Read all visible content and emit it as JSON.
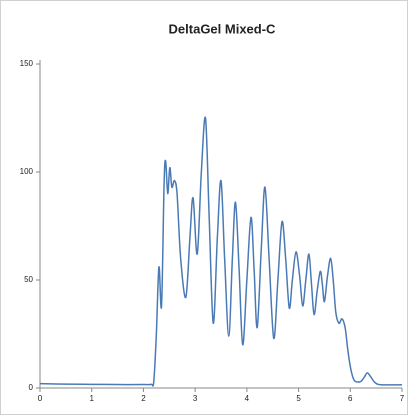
{
  "chart_data": {
    "type": "line",
    "title": "DeltaGel Mixed-C",
    "x": [
      0,
      0.5,
      1,
      1.5,
      2,
      2.15,
      2.2,
      2.25,
      2.3,
      2.35,
      2.4,
      2.43,
      2.47,
      2.51,
      2.55,
      2.6,
      2.65,
      2.72,
      2.82,
      2.9,
      2.96,
      3.04,
      3.12,
      3.2,
      3.27,
      3.35,
      3.43,
      3.5,
      3.57,
      3.65,
      3.72,
      3.78,
      3.85,
      3.92,
      4.0,
      4.08,
      4.14,
      4.2,
      4.28,
      4.35,
      4.43,
      4.52,
      4.6,
      4.68,
      4.75,
      4.82,
      4.88,
      4.95,
      5.02,
      5.08,
      5.14,
      5.2,
      5.25,
      5.3,
      5.36,
      5.42,
      5.46,
      5.5,
      5.56,
      5.62,
      5.67,
      5.72,
      5.78,
      5.84,
      5.9,
      5.95,
      6.0,
      6.05,
      6.1,
      6.2,
      6.27,
      6.33,
      6.4,
      6.48,
      6.6,
      7
    ],
    "series": [
      {
        "color": "#4a7ab5",
        "values": [
          2,
          1.8,
          1.7,
          1.6,
          1.6,
          1.7,
          3,
          25,
          56,
          38,
          95,
          105,
          90,
          102,
          93,
          96,
          90,
          60,
          42,
          70,
          88,
          62,
          100,
          125,
          80,
          30,
          70,
          96,
          60,
          24,
          60,
          86,
          55,
          20,
          50,
          79,
          55,
          28,
          65,
          93,
          60,
          23,
          50,
          77,
          60,
          37,
          50,
          63,
          52,
          38,
          50,
          62,
          48,
          34,
          45,
          54,
          48,
          40,
          52,
          60,
          50,
          35,
          30,
          32,
          28,
          18,
          10,
          5,
          3,
          3,
          5,
          7,
          5,
          2.5,
          1.5,
          1.5
        ]
      }
    ],
    "xlim": [
      0,
      7
    ],
    "xticks": [
      0,
      1,
      2,
      3,
      4,
      5,
      6,
      7
    ],
    "ylim": [
      0,
      150
    ],
    "yticks": [
      0,
      50,
      100,
      150
    ]
  }
}
